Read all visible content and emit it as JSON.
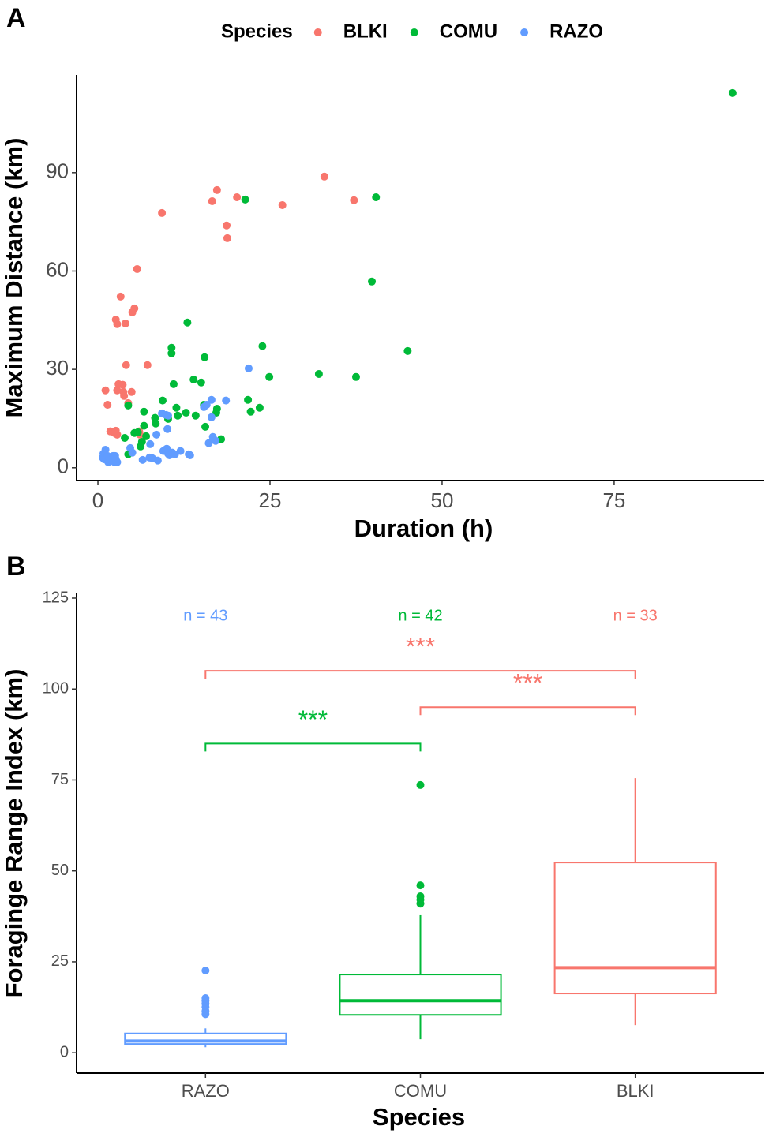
{
  "chart_data": [
    {
      "type": "scatter",
      "panel": "A",
      "x_label": "Duration (h)",
      "y_label": "Maximum Distance (km)",
      "legend_title": "Species",
      "legend_position": "top",
      "xlim": [
        -3.1,
        96.8
      ],
      "xticks": [
        0,
        25,
        50,
        75
      ],
      "ylim": [
        -3.9,
        119.8
      ],
      "yticks": [
        0,
        30,
        60,
        90
      ],
      "series": [
        {
          "name": "BLKI",
          "color": "#F8766D",
          "x": [
            1.1,
            1.4,
            1.8,
            2.4,
            2.6,
            2.8,
            3.0,
            2.8,
            3.3,
            3.6,
            3.7,
            3.8,
            4.0,
            4.1,
            4.4,
            4.9,
            5.0,
            5.3,
            5.7,
            6.0,
            7.2,
            9.3,
            2.8,
            2.6,
            16.6,
            17.3,
            18.7,
            18.8,
            20.2,
            26.8,
            32.9,
            37.2,
            6.1
          ],
          "y": [
            23.6,
            19.2,
            11.1,
            10.6,
            45.2,
            43.8,
            25.5,
            23.6,
            52.2,
            25.3,
            23.1,
            21.9,
            44.0,
            31.3,
            19.7,
            23.1,
            47.4,
            48.6,
            60.6,
            11.1,
            31.3,
            77.7,
            10.1,
            11.3,
            81.3,
            84.7,
            73.9,
            70.0,
            82.5,
            80.1,
            88.8,
            81.6,
            10.1
          ]
        },
        {
          "name": "COMU",
          "color": "#00BA38",
          "x": [
            4.4,
            3.9,
            4.4,
            5.3,
            5.8,
            6.2,
            6.4,
            6.7,
            6.7,
            7.0,
            8.3,
            8.4,
            9.4,
            10.2,
            10.7,
            10.7,
            11.0,
            11.4,
            11.6,
            13.0,
            12.8,
            14.2,
            13.9,
            15.0,
            15.5,
            15.4,
            15.6,
            17.3,
            17.2,
            17.9,
            21.4,
            21.8,
            22.2,
            23.5,
            23.9,
            24.9,
            32.1,
            37.5,
            39.8,
            40.4,
            45.0,
            92.2
          ],
          "y": [
            4.1,
            9.1,
            19.0,
            10.6,
            10.8,
            6.5,
            7.9,
            17.1,
            12.8,
            9.6,
            15.2,
            13.5,
            20.5,
            14.9,
            36.6,
            34.9,
            25.5,
            18.3,
            15.9,
            44.3,
            16.8,
            15.9,
            26.9,
            26.0,
            33.7,
            19.2,
            12.5,
            18.0,
            16.8,
            8.7,
            81.8,
            20.7,
            17.1,
            18.3,
            37.1,
            27.7,
            28.6,
            27.7,
            56.8,
            82.5,
            35.6,
            114.3
          ]
        },
        {
          "name": "RAZO",
          "color": "#619CFF",
          "x": [
            0.7,
            0.8,
            0.9,
            1.1,
            1.4,
            1.5,
            1.7,
            2.0,
            2.2,
            2.4,
            2.6,
            2.8,
            4.7,
            5.0,
            6.5,
            7.5,
            7.6,
            7.9,
            8.5,
            8.7,
            9.3,
            9.5,
            9.9,
            10.0,
            10.1,
            10.2,
            10.2,
            10.4,
            10.8,
            11.2,
            12.0,
            13.2,
            13.4,
            15.4,
            15.8,
            16.1,
            16.5,
            16.5,
            16.7,
            17.1,
            18.6,
            21.9,
            2.5
          ],
          "y": [
            3.1,
            4.3,
            2.6,
            5.5,
            3.6,
            1.7,
            3.1,
            2.2,
            3.6,
            1.7,
            2.6,
            1.7,
            6.0,
            4.6,
            2.4,
            3.1,
            7.2,
            2.9,
            10.1,
            2.2,
            16.6,
            5.1,
            16.1,
            5.8,
            11.8,
            15.9,
            4.3,
            3.8,
            4.6,
            4.1,
            5.1,
            4.1,
            3.8,
            18.5,
            19.2,
            7.5,
            20.7,
            15.4,
            9.4,
            8.2,
            20.5,
            30.3,
            3.6
          ]
        }
      ]
    },
    {
      "type": "box",
      "panel": "B",
      "x_label": "Species",
      "y_label": "Foraginge Range Index (km)",
      "ylim": [
        -5.6,
        126.3
      ],
      "yticks": [
        0,
        25,
        50,
        75,
        100,
        125
      ],
      "categories": [
        "RAZO",
        "COMU",
        "BLKI"
      ],
      "colors": [
        "#619CFF",
        "#00BA38",
        "#F8766D"
      ],
      "boxes": [
        {
          "low": 1.5,
          "q1": 2.4,
          "median": 3.2,
          "q3": 5.3,
          "high": 6.7,
          "outliers": [
            22.6,
            15.0,
            14.3,
            13.5,
            12.6,
            11.5,
            10.6
          ]
        },
        {
          "low": 3.7,
          "q1": 10.4,
          "median": 14.3,
          "q3": 21.5,
          "high": 37.8,
          "outliers": [
            73.6,
            46.0,
            43.0,
            42.1,
            41.0
          ]
        },
        {
          "low": 7.6,
          "q1": 16.3,
          "median": 23.4,
          "q3": 52.3,
          "high": 75.5,
          "outliers": []
        }
      ],
      "counts": [
        {
          "text": "n = 43",
          "category": "RAZO",
          "y": 120,
          "color": "#619CFF"
        },
        {
          "text": "n = 42",
          "category": "COMU",
          "y": 120,
          "color": "#00BA38"
        },
        {
          "text": "n = 33",
          "category": "BLKI",
          "y": 120,
          "color": "#F8766D"
        }
      ],
      "brackets": [
        {
          "between": [
            "RAZO",
            "BLKI"
          ],
          "y": 105,
          "label": "***",
          "color": "#F8766D"
        },
        {
          "between": [
            "COMU",
            "BLKI"
          ],
          "y": 95,
          "label": "***",
          "color": "#F8766D"
        },
        {
          "between": [
            "RAZO",
            "COMU"
          ],
          "y": 85,
          "label": "***",
          "color": "#00BA38"
        }
      ]
    }
  ]
}
